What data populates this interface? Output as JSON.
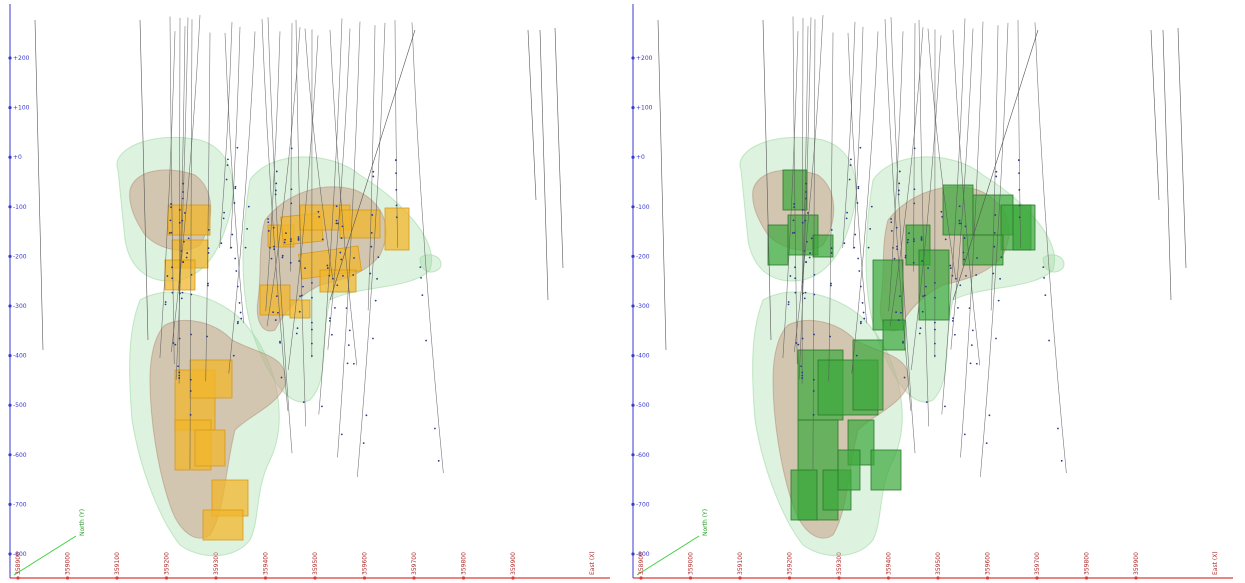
{
  "colors": {
    "axis_z": "#3a3ad0",
    "axis_x": "#e03a3a",
    "axis_y": "#3fcf3f",
    "halo": "#9fdaa3",
    "shell": "#c9a28a",
    "block_orange": "#f2b62b",
    "block_green": "#3aa83a",
    "trace": "#555555"
  },
  "panels": [
    {
      "id": "left",
      "block_color": "block_orange",
      "z_ticks": [
        "+200",
        "+100",
        "+0",
        "-100",
        "-200",
        "-300",
        "-400",
        "-500",
        "-600",
        "-700",
        "-800"
      ],
      "x_ticks": [
        "358900",
        "359000",
        "359100",
        "359200",
        "359300",
        "359400",
        "359500",
        "359600",
        "359700",
        "359800",
        "359900"
      ],
      "x_axis_label": "East (X)",
      "y_axis_label": "North (Y)"
    },
    {
      "id": "right",
      "block_color": "block_green",
      "z_ticks": [
        "+200",
        "+100",
        "+0",
        "-100",
        "-200",
        "-300",
        "-400",
        "-500",
        "-600",
        "-700",
        "-800"
      ],
      "x_ticks": [
        "358900",
        "359000",
        "359100",
        "359200",
        "359300",
        "359400",
        "359500",
        "359600",
        "359700",
        "359800",
        "359900"
      ],
      "x_axis_label": "East (X)",
      "y_axis_label": "North (Y)"
    }
  ]
}
